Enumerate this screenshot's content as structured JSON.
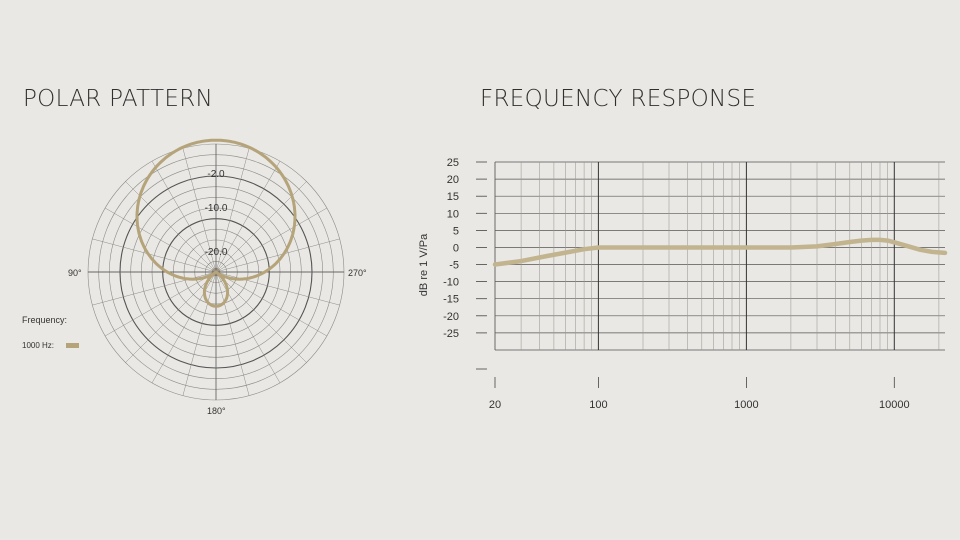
{
  "chart_data": [
    {
      "type": "polar",
      "title": "POLAR PATTERN",
      "ring_labels": [
        {
          "value": -2,
          "text": "-2.0"
        },
        {
          "value": -10,
          "text": "-10.0"
        },
        {
          "value": -20,
          "text": "-20.0"
        }
      ],
      "angle_labels": {
        "top": "",
        "left": "90°",
        "right": "270°",
        "bottom": "180°"
      },
      "legend_title": "Frequency:",
      "series": [
        {
          "name": "1000 Hz:",
          "color": "#b5a37a",
          "pattern": "supercardioid"
        }
      ]
    },
    {
      "type": "line",
      "title": "FREQUENCY RESPONSE",
      "ylabel": "dB re 1 V/Pa",
      "xlabel": "",
      "xscale": "log",
      "xlim": [
        20,
        22000
      ],
      "ylim": [
        -30,
        25
      ],
      "yticks": [
        25,
        20,
        15,
        10,
        5,
        0,
        -5,
        -10,
        -15,
        -20,
        -25
      ],
      "ytick_labels": [
        "25",
        "20",
        "15",
        "10",
        "5",
        "0",
        "-5",
        "-10",
        "-15",
        "-20",
        "-25"
      ],
      "xtick_labels": [
        "20",
        "100",
        "1000",
        "10000"
      ],
      "xticks": [
        20,
        100,
        1000,
        10000
      ],
      "series": [
        {
          "name": "",
          "color": "#c2b48e",
          "x": [
            20,
            30,
            45,
            60,
            80,
            100,
            120,
            200,
            500,
            1000,
            2000,
            3000,
            4000,
            5000,
            6000,
            7000,
            8000,
            9000,
            10000,
            12000,
            15000,
            18000,
            22000
          ],
          "y": [
            -5,
            -4,
            -2.5,
            -1.5,
            -0.5,
            0,
            0,
            0,
            0,
            0,
            0,
            0.3,
            1,
            1.6,
            2,
            2.2,
            2.2,
            2,
            1.5,
            0.5,
            -0.7,
            -1.3,
            -1.6
          ]
        }
      ]
    }
  ]
}
